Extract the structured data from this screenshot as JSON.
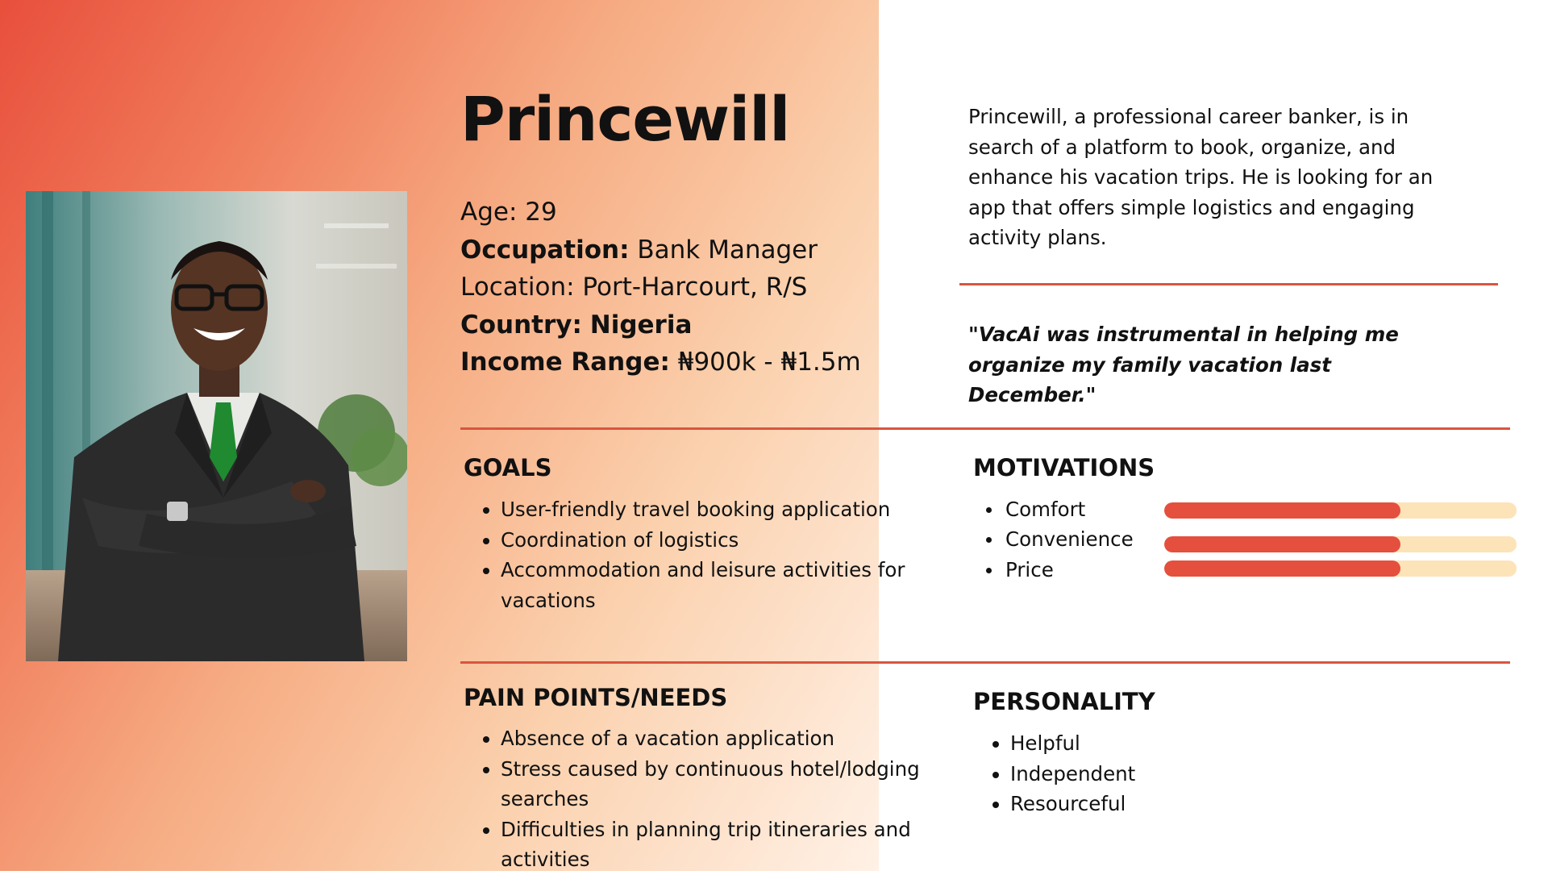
{
  "persona": {
    "name": "Princewill",
    "facts": [
      {
        "label": "Age:",
        "value": "29"
      },
      {
        "label": "Occupation:",
        "value": "Bank Manager"
      },
      {
        "label": "Location:",
        "value": "Port-Harcourt, R/S"
      },
      {
        "label": "Country:",
        "value": "Nigeria"
      },
      {
        "label": "Income Range:",
        "value": "₦900k - ₦1.5m"
      }
    ],
    "summary": "Princewill, a professional career banker, is in search of a platform to book, organize, and enhance his vacation trips. He is looking for an app that offers simple logistics and engaging activity plans.",
    "quote": "\"VacAi was instrumental in helping me organize my family vacation last December.\""
  },
  "goals": {
    "title": "GOALS",
    "items": [
      "User-friendly travel booking application",
      "Coordination of logistics",
      "Accommodation and leisure activities for vacations"
    ]
  },
  "motivations": {
    "title": "MOTIVATIONS",
    "items": [
      {
        "label": "Comfort",
        "level": 0.67
      },
      {
        "label": "Convenience",
        "level": 0.67
      },
      {
        "label": "Price",
        "level": 0.67
      }
    ]
  },
  "pain_points": {
    "title": "PAIN POINTS/NEEDS",
    "items": [
      "Absence of a vacation application",
      "Stress caused by continuous hotel/lodging searches",
      "Difficulties in planning trip itineraries and activities"
    ]
  },
  "personality": {
    "title": "PERSONALITY",
    "items": [
      "Helpful",
      "Independent",
      "Resourceful"
    ]
  },
  "colors": {
    "accent": "#d9553e",
    "bar_fill": "#e4503d",
    "bar_track": "#fde3b8"
  },
  "icons": {
    "photo": "persona-photo"
  }
}
